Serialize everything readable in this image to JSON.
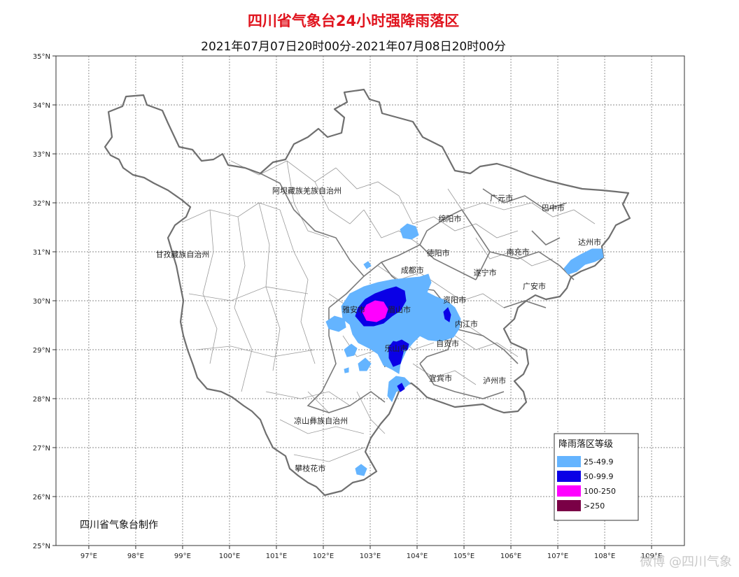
{
  "title": "四川省气象台24小时强降雨落区",
  "subtitle": "2021年07月07日20时00分-2021年07月08日20时00分",
  "lat_labels": [
    "35°N",
    "34°N",
    "33°N",
    "32°N",
    "31°N",
    "30°N",
    "29°N",
    "28°N",
    "27°N",
    "26°N",
    "25°N"
  ],
  "lon_labels": [
    "97°E",
    "98°E",
    "99°E",
    "100°E",
    "101°E",
    "102°E",
    "103°E",
    "104°E",
    "105°E",
    "106°E",
    "107°E",
    "108°E",
    "109°E"
  ],
  "places": [
    {
      "id": "aba",
      "name": "阿坝藏族羌族自治州",
      "lon": 101.65,
      "lat": 32.25
    },
    {
      "id": "ganzi",
      "name": "甘孜藏族自治州",
      "lon": 99.0,
      "lat": 30.95
    },
    {
      "id": "liangshan",
      "name": "凉山彝族自治州",
      "lon": 101.95,
      "lat": 27.55
    },
    {
      "id": "panzhihua",
      "name": "攀枝花市",
      "lon": 101.72,
      "lat": 26.58
    },
    {
      "id": "guangyuan",
      "name": "广元市",
      "lon": 105.8,
      "lat": 32.1
    },
    {
      "id": "bazhong",
      "name": "巴中市",
      "lon": 106.9,
      "lat": 31.9
    },
    {
      "id": "mianyang",
      "name": "绵阳市",
      "lon": 104.7,
      "lat": 31.68
    },
    {
      "id": "dazhou",
      "name": "达州市",
      "lon": 107.68,
      "lat": 31.2
    },
    {
      "id": "deyang",
      "name": "德阳市",
      "lon": 104.45,
      "lat": 30.98
    },
    {
      "id": "nanchong",
      "name": "南充市",
      "lon": 106.15,
      "lat": 31.0
    },
    {
      "id": "chengdu",
      "name": "成都市",
      "lon": 103.9,
      "lat": 30.63
    },
    {
      "id": "suining",
      "name": "遂宁市",
      "lon": 105.45,
      "lat": 30.58
    },
    {
      "id": "guangan",
      "name": "广安市",
      "lon": 106.5,
      "lat": 30.3
    },
    {
      "id": "ziyang",
      "name": "资阳市",
      "lon": 104.8,
      "lat": 30.02
    },
    {
      "id": "yaan",
      "name": "雅安市",
      "lon": 102.65,
      "lat": 29.82
    },
    {
      "id": "meishan",
      "name": "眉山市",
      "lon": 103.62,
      "lat": 29.82
    },
    {
      "id": "neijiang",
      "name": "内江市",
      "lon": 105.05,
      "lat": 29.53
    },
    {
      "id": "zigong",
      "name": "自贡市",
      "lon": 104.65,
      "lat": 29.13
    },
    {
      "id": "leshan",
      "name": "乐山市",
      "lon": 103.55,
      "lat": 29.03
    },
    {
      "id": "yibin",
      "name": "宜宾市",
      "lon": 104.5,
      "lat": 28.42
    },
    {
      "id": "luzhou",
      "name": "泸州市",
      "lon": 105.65,
      "lat": 28.37
    }
  ],
  "credit": "四川省气象台制作",
  "legend": {
    "title": "降雨落区等级",
    "items": [
      {
        "label": "25-49.9",
        "color": "#64b4ff"
      },
      {
        "label": "50-99.9",
        "color": "#0a00e6"
      },
      {
        "label": "100-250",
        "color": "#ff00ff"
      },
      {
        "label": ">250",
        "color": "#7a0046"
      }
    ]
  },
  "watermark": "微博 @四川气象"
}
